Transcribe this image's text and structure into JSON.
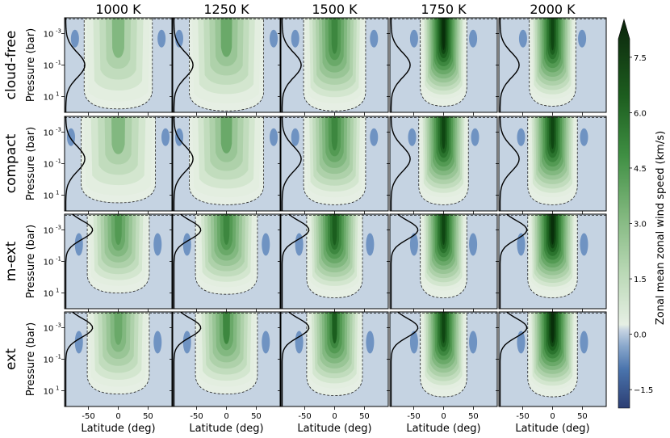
{
  "chart_data": {
    "type": "heatmap",
    "title": "",
    "columns": [
      "1000 K",
      "1250 K",
      "1500 K",
      "1750 K",
      "2000 K"
    ],
    "rows": [
      "cloud-free",
      "compact",
      "m-ext",
      "ext"
    ],
    "xlabel": "Latitude (deg)",
    "ylabel": "Pressure (bar)",
    "colorbar_label": "Zonal mean zonal wind speed (km/s)",
    "x_ticks": [
      "-50",
      "0",
      "50"
    ],
    "x_tick_values": [
      -50,
      0,
      50
    ],
    "xlim": [
      -90,
      90
    ],
    "y_ticks": [
      "10",
      "10",
      "10"
    ],
    "y_tick_exps": [
      "-3",
      "-1",
      "1"
    ],
    "y_tick_values": [
      0.001,
      0.1,
      10
    ],
    "ylim_bar": [
      100,
      0.0001
    ],
    "y_scale": "log",
    "colorbar_ticks": [
      "7.5",
      "6.0",
      "4.5",
      "3.0",
      "1.5",
      "0.0",
      "−1.5"
    ],
    "colorbar_tick_values": [
      7.5,
      6.0,
      4.5,
      3.0,
      1.5,
      0.0,
      -1.5
    ],
    "colorbar_range": [
      -2.0,
      8.0
    ],
    "colorbar_extend": "max",
    "colors": {
      "background_negative": "#c5d3e2",
      "negative_jet": "#6f93c2",
      "negative_strong": "#2f5d99",
      "zero_band": "#e6efe4",
      "positive_low": "#cfe3cc",
      "positive_mid": "#7fb67c",
      "positive_high": "#2e7d32",
      "positive_max": "#0d2e0d"
    },
    "jet_max_km_s": [
      [
        3.0,
        3.6,
        5.3,
        7.5,
        7.0
      ],
      [
        3.0,
        3.6,
        5.3,
        7.3,
        7.2
      ],
      [
        4.8,
        5.3,
        6.3,
        7.0,
        7.6
      ],
      [
        4.0,
        4.9,
        6.2,
        7.4,
        7.8
      ]
    ],
    "jet_halfwidth_deg": [
      [
        22,
        24,
        20,
        15,
        15
      ],
      [
        24,
        24,
        20,
        16,
        16
      ],
      [
        20,
        20,
        18,
        15,
        16
      ],
      [
        20,
        20,
        18,
        15,
        16
      ]
    ],
    "jet_bottom_bar": [
      [
        30,
        40,
        40,
        20,
        20
      ],
      [
        15,
        20,
        20,
        20,
        20
      ],
      [
        5,
        6,
        10,
        10,
        10
      ],
      [
        8,
        8,
        10,
        12,
        12
      ]
    ]
  }
}
